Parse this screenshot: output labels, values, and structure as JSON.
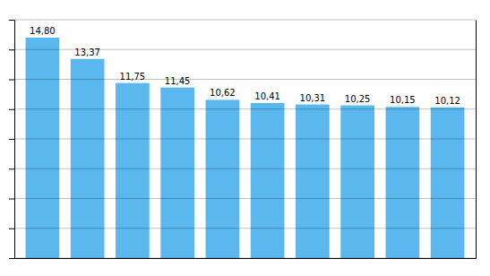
{
  "chart_data": {
    "type": "bar",
    "categories": [
      null,
      null,
      null,
      null,
      null,
      null,
      null,
      null,
      null,
      null
    ],
    "values": [
      14.8,
      13.37,
      11.75,
      11.45,
      10.62,
      10.41,
      10.31,
      10.25,
      10.15,
      10.12
    ],
    "value_labels": [
      "14,80",
      "13,37",
      "11,75",
      "11,45",
      "10,62",
      "10,41",
      "10,31",
      "10,25",
      "10,15",
      "10,12"
    ],
    "color": "#5BB8EE",
    "ylim": [
      0,
      16
    ],
    "yticks": [
      0,
      2,
      4,
      6,
      8,
      10,
      12,
      14,
      16
    ],
    "grid": true,
    "data_labels": true,
    "tick_labels": false
  }
}
